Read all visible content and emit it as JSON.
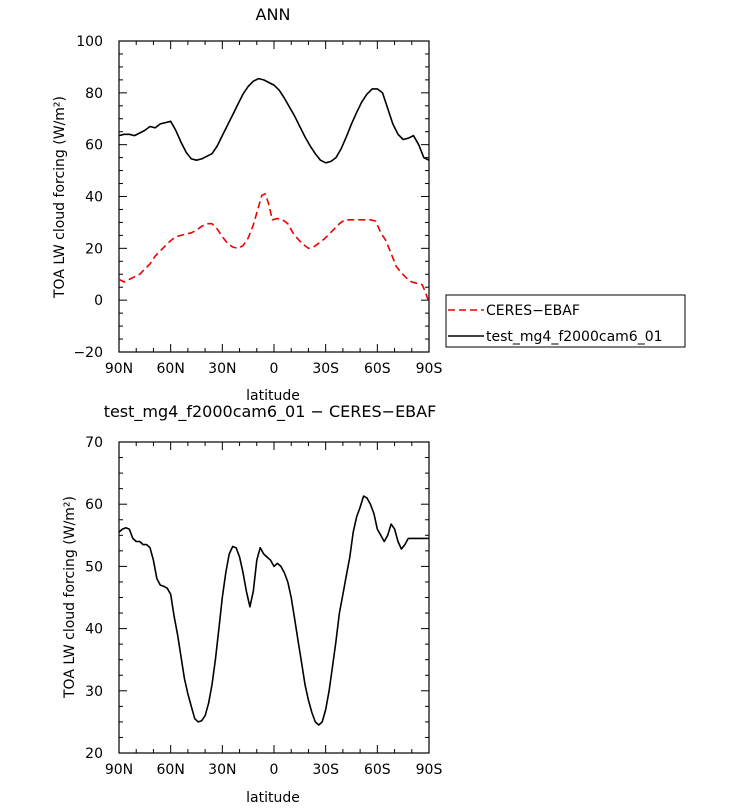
{
  "chart_data": [
    {
      "type": "line",
      "title": "ANN",
      "xlabel": "latitude",
      "ylabel": "TOA LW cloud forcing (W/m²)",
      "xlim": [
        90,
        -90
      ],
      "ylim": [
        -20,
        100
      ],
      "xticks": [
        90,
        60,
        30,
        0,
        -30,
        -60,
        -90
      ],
      "xtick_labels": [
        "90N",
        "60N",
        "30N",
        "0",
        "30S",
        "60S",
        "90S"
      ],
      "yticks": [
        -20,
        0,
        20,
        40,
        60,
        80,
        100
      ],
      "ytick_labels": [
        "−20",
        "0",
        "20",
        "40",
        "60",
        "80",
        "100"
      ],
      "legend_position": "right",
      "series": [
        {
          "name": "CERES−EBAF",
          "color": "#ee0000",
          "dash": "dashed",
          "x": [
            90,
            87,
            84,
            81,
            78,
            75,
            72,
            69,
            66,
            63,
            60,
            57,
            54,
            51,
            48,
            45,
            42,
            39,
            36,
            33,
            30,
            27,
            24,
            21,
            18,
            15,
            12,
            9,
            7,
            5,
            3,
            1,
            -2,
            -5,
            -8,
            -11,
            -14,
            -17,
            -20,
            -23,
            -26,
            -29,
            -32,
            -35,
            -38,
            -41,
            -44,
            -47,
            -50,
            -53,
            -56,
            -59,
            -62,
            -65,
            -68,
            -71,
            -74,
            -77,
            -80,
            -83,
            -86,
            -88,
            -90
          ],
          "y": [
            8,
            7,
            8,
            9,
            10,
            12,
            14,
            17,
            19,
            21,
            23,
            24.5,
            25,
            25.5,
            26,
            27,
            28.5,
            29.5,
            29.5,
            27.5,
            24.5,
            22,
            20.5,
            20,
            21,
            24,
            29,
            36,
            40.5,
            41,
            37,
            31,
            31.5,
            31,
            29.5,
            26,
            23.5,
            21.5,
            20,
            20.5,
            22,
            23.5,
            25.5,
            27.5,
            29.5,
            31,
            31,
            31,
            31,
            31,
            31,
            30.5,
            26,
            23,
            18,
            13,
            10.5,
            8.5,
            7,
            6.5,
            6,
            3,
            -1
          ]
        },
        {
          "name": "test_mg4_f2000cam6_01",
          "color": "#000000",
          "dash": "solid",
          "x": [
            90,
            87,
            84,
            81,
            78,
            75,
            72,
            69,
            66,
            63,
            60,
            57,
            54,
            51,
            48,
            45,
            42,
            39,
            36,
            33,
            30,
            27,
            24,
            21,
            18,
            15,
            12,
            9,
            6,
            3,
            0,
            -3,
            -6,
            -9,
            -12,
            -15,
            -18,
            -21,
            -24,
            -27,
            -30,
            -33,
            -36,
            -39,
            -42,
            -45,
            -48,
            -51,
            -54,
            -57,
            -60,
            -63,
            -66,
            -69,
            -72,
            -75,
            -78,
            -81,
            -84,
            -87,
            -90
          ],
          "y": [
            63.5,
            64,
            64,
            63.5,
            64.5,
            65.5,
            67,
            66.5,
            68,
            68.5,
            69,
            65.5,
            61,
            57,
            54.5,
            54,
            54.5,
            55.5,
            56.5,
            59.5,
            63.5,
            67.5,
            71.5,
            75.5,
            79.5,
            82.5,
            84.5,
            85.5,
            85,
            84,
            83,
            81,
            78,
            74.5,
            71,
            67,
            63,
            59.5,
            56.5,
            54,
            53,
            53.5,
            55,
            58.5,
            63,
            68,
            72.5,
            76.5,
            79.5,
            81.5,
            81.5,
            80,
            74,
            68,
            64,
            62,
            62.5,
            63.5,
            60,
            55,
            54
          ]
        }
      ]
    },
    {
      "type": "line",
      "title": "test_mg4_f2000cam6_01 − CERES−EBAF",
      "xlabel": "latitude",
      "ylabel": "TOA LW cloud forcing (W/m²)",
      "xlim": [
        90,
        -90
      ],
      "ylim": [
        20,
        70
      ],
      "xticks": [
        90,
        60,
        30,
        0,
        -30,
        -60,
        -90
      ],
      "xtick_labels": [
        "90N",
        "60N",
        "30N",
        "0",
        "30S",
        "60S",
        "90S"
      ],
      "yticks": [
        20,
        30,
        40,
        50,
        60,
        70
      ],
      "ytick_labels": [
        "20",
        "30",
        "40",
        "50",
        "60",
        "70"
      ],
      "series": [
        {
          "color": "#000000",
          "dash": "solid",
          "x": [
            90,
            88,
            86,
            84,
            82,
            80,
            78,
            76,
            74,
            72,
            70,
            68,
            66,
            64,
            62,
            60,
            58,
            56,
            54,
            52,
            50,
            48,
            46,
            44,
            42,
            40,
            38,
            36,
            34,
            32,
            30,
            28,
            26,
            24,
            22,
            20,
            18,
            16,
            14,
            12,
            10,
            8,
            6,
            4,
            2,
            0,
            -2,
            -4,
            -6,
            -8,
            -10,
            -12,
            -14,
            -16,
            -18,
            -20,
            -22,
            -24,
            -26,
            -28,
            -30,
            -32,
            -34,
            -36,
            -38,
            -40,
            -42,
            -44,
            -46,
            -48,
            -50,
            -52,
            -54,
            -56,
            -58,
            -60,
            -62,
            -64,
            -66,
            -68,
            -70,
            -72,
            -74,
            -76,
            -78,
            -80,
            -82,
            -84,
            -86,
            -88,
            -90
          ],
          "y": [
            55.5,
            56,
            56.2,
            56,
            54.5,
            54,
            54,
            53.5,
            53.5,
            53,
            51,
            48,
            47,
            46.8,
            46.5,
            45.5,
            42,
            39,
            35.5,
            32,
            29.5,
            27.5,
            25.5,
            25,
            25.2,
            26,
            28,
            31,
            35,
            40,
            45,
            49,
            52,
            53.2,
            53,
            51.5,
            49,
            46,
            43.5,
            46,
            51,
            53,
            52,
            51.5,
            51,
            50,
            50.5,
            50,
            49,
            47.5,
            45,
            41.5,
            38,
            34.5,
            31,
            28.5,
            26.5,
            25,
            24.5,
            25,
            27,
            30,
            34,
            38,
            42.5,
            45.5,
            48.5,
            51.5,
            55.5,
            58,
            59.5,
            61.3,
            61,
            60,
            58.5,
            56,
            55,
            54,
            55,
            56.8,
            56,
            54,
            52.8,
            53.5,
            54.5,
            54.5,
            54.5,
            54.5,
            54.5,
            54.5,
            54.5
          ]
        }
      ]
    }
  ]
}
